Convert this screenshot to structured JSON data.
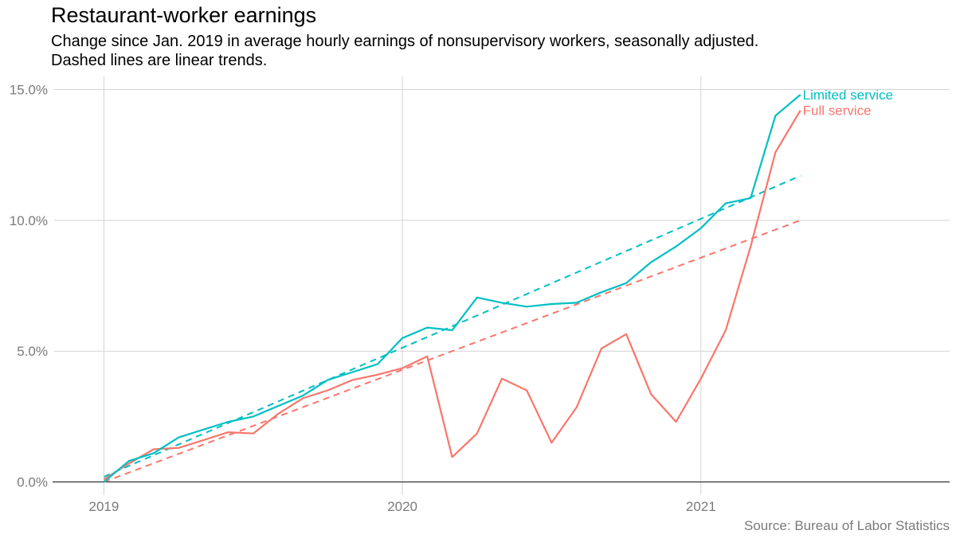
{
  "chart_data": {
    "type": "line",
    "title": "Restaurant-worker earnings",
    "subtitle_line1": "Change since Jan. 2019 in average hourly earnings of nonsupervisory workers, seasonally adjusted.",
    "subtitle_line2": "Dashed lines are linear trends.",
    "source": "Source: Bureau of Labor Statistics",
    "xlabel": "",
    "ylabel": "",
    "x_tick_labels": [
      "2019",
      "2020",
      "2021"
    ],
    "y_tick_labels": [
      "0.0%",
      "5.0%",
      "10.0%",
      "15.0%"
    ],
    "xlim": [
      "2018-11",
      "2021-11"
    ],
    "ylim": [
      -0.5,
      15.5
    ],
    "grid": true,
    "legend": "direct labels at line ends",
    "x": [
      "2019-01",
      "2019-02",
      "2019-03",
      "2019-04",
      "2019-05",
      "2019-06",
      "2019-07",
      "2019-08",
      "2019-09",
      "2019-10",
      "2019-11",
      "2019-12",
      "2020-01",
      "2020-02",
      "2020-03",
      "2020-04",
      "2020-05",
      "2020-06",
      "2020-07",
      "2020-08",
      "2020-09",
      "2020-10",
      "2020-11",
      "2020-12",
      "2021-01",
      "2021-02",
      "2021-03",
      "2021-04",
      "2021-05"
    ],
    "series": [
      {
        "name": "Limited service",
        "color": "#00bfc4",
        "values": [
          0.0,
          0.8,
          1.1,
          1.7,
          2.0,
          2.3,
          2.5,
          2.9,
          3.3,
          3.9,
          4.2,
          4.5,
          5.5,
          5.9,
          5.8,
          7.05,
          6.85,
          6.7,
          6.8,
          6.85,
          7.25,
          7.6,
          8.4,
          9.0,
          9.7,
          10.65,
          10.85,
          14.0,
          14.8
        ],
        "trend": {
          "start": [
            "2019-01",
            0.2
          ],
          "end": [
            "2021-05",
            11.7
          ]
        }
      },
      {
        "name": "Full service",
        "color": "#f8766d",
        "values": [
          0.1,
          0.7,
          1.25,
          1.3,
          1.6,
          1.9,
          1.85,
          2.6,
          3.2,
          3.5,
          3.9,
          4.1,
          4.35,
          4.8,
          0.95,
          1.85,
          3.95,
          3.5,
          1.5,
          2.85,
          5.1,
          5.65,
          3.35,
          2.3,
          3.95,
          5.8,
          9.0,
          12.6,
          14.2
        ],
        "trend": {
          "start": [
            "2019-01",
            0.0
          ],
          "end": [
            "2021-05",
            10.0
          ]
        }
      }
    ]
  }
}
